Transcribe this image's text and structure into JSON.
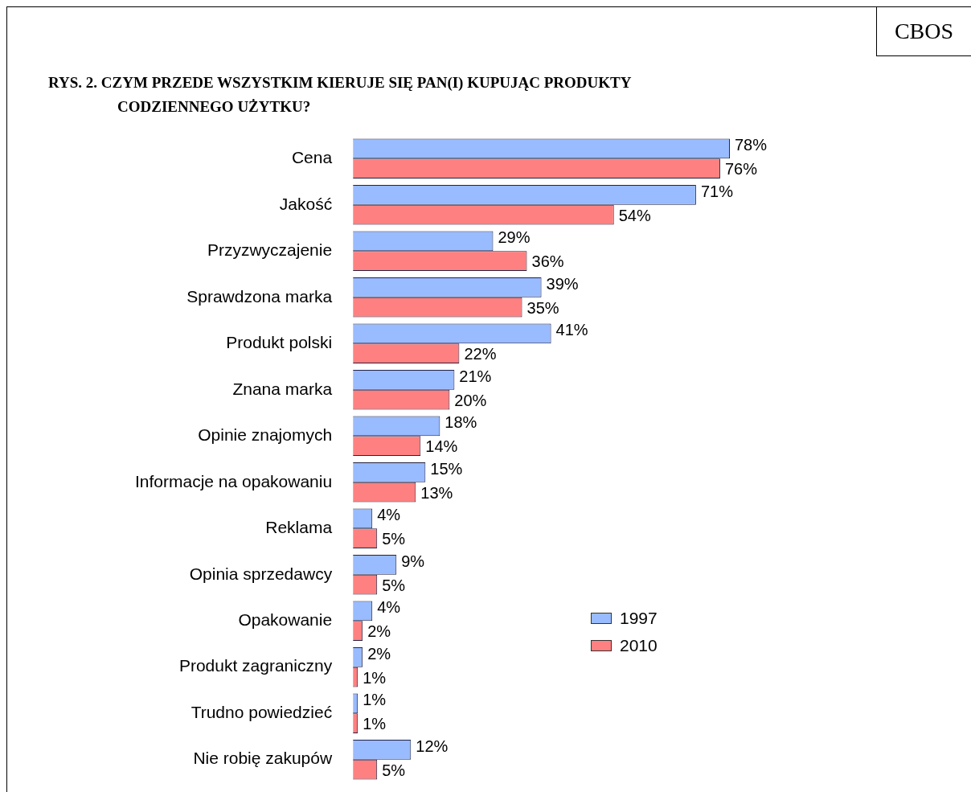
{
  "chart_data": {
    "type": "bar",
    "orientation": "horizontal",
    "title": "RYS. 2. CZYM PRZEDE WSZYSTKIM KIERUJE SIĘ PAN(I) KUPUJĄC PRODUKTY CODZIENNEGO UŻYTKU?",
    "annotations": [
      "CBOS"
    ],
    "categories": [
      "Cena",
      "Jakość",
      "Przyzwyczajenie",
      "Sprawdzona marka",
      "Produkt polski",
      "Znana marka",
      "Opinie znajomych",
      "Informacje na opakowaniu",
      "Reklama",
      "Opinia sprzedawcy",
      "Opakowanie",
      "Produkt zagraniczny",
      "Trudno powiedzieć",
      "Nie robię zakupów"
    ],
    "series": [
      {
        "name": "1997",
        "color": "#99bbff",
        "values": [
          78,
          71,
          29,
          39,
          41,
          21,
          18,
          15,
          4,
          9,
          4,
          2,
          1,
          12
        ],
        "value_labels": [
          "78%",
          "71%",
          "29%",
          "39%",
          "41%",
          "21%",
          "18%",
          "15%",
          "4%",
          "9%",
          "4%",
          "2%",
          "1%",
          "12%"
        ]
      },
      {
        "name": "2010",
        "color": "#ff8080",
        "values": [
          76,
          54,
          36,
          35,
          22,
          20,
          14,
          13,
          5,
          5,
          2,
          1,
          1,
          5
        ],
        "value_labels": [
          "76%",
          "54%",
          "36%",
          "35%",
          "22%",
          "20%",
          "14%",
          "13%",
          "5%",
          "5%",
          "2%",
          "1%",
          "1%",
          "5%"
        ]
      }
    ],
    "legend": "right"
  }
}
